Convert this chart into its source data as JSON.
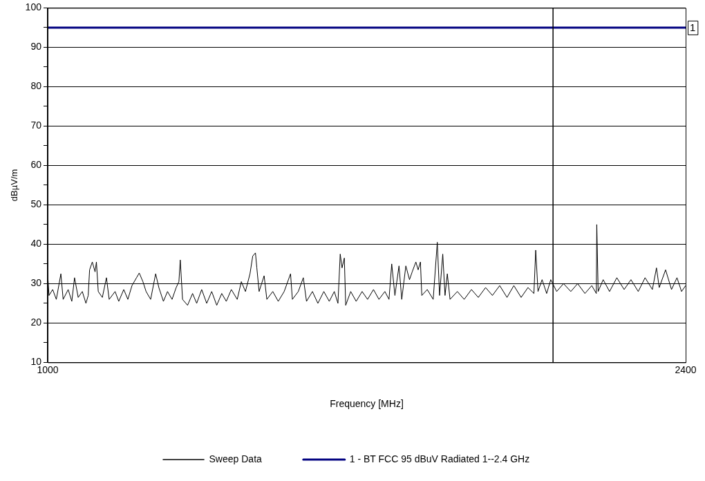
{
  "chart_data": {
    "type": "line",
    "xlabel": "Frequency [MHz]",
    "ylabel": "dBµV/m",
    "xlim": [
      1000,
      2400
    ],
    "xticks": [
      1000,
      2400
    ],
    "ylim": [
      10,
      100
    ],
    "yticks": [
      10,
      {
        "value": 15,
        "label": null
      },
      20,
      {
        "value": 25,
        "label": null
      },
      30,
      {
        "value": 35,
        "label": null
      },
      40,
      {
        "value": 45,
        "label": null
      },
      50,
      {
        "value": 55,
        "label": null
      },
      60,
      {
        "value": 65,
        "label": null
      },
      70,
      {
        "value": 75,
        "label": null
      },
      80,
      {
        "value": 85,
        "label": null
      },
      90,
      {
        "value": 95,
        "label": null
      },
      100
    ],
    "grid": "y",
    "legend": "bottom",
    "marker": "none",
    "line_style": "solid",
    "ref_lines": [
      {
        "axis": "x",
        "value": 2109,
        "color": "#000000"
      }
    ],
    "annotations": [
      {
        "text": "1",
        "x": 2400,
        "y": 95
      }
    ],
    "series": [
      {
        "name": "Sweep Data",
        "color": "#000000",
        "x": [
          1000,
          1003,
          1011,
          1019,
          1029,
          1034,
          1045,
          1053,
          1059,
          1067,
          1076,
          1084,
          1089,
          1092,
          1098,
          1104,
          1107,
          1111,
          1120,
          1129,
          1135,
          1148,
          1156,
          1167,
          1176,
          1185,
          1195,
          1201,
          1209,
          1216,
          1226,
          1237,
          1244,
          1254,
          1263,
          1273,
          1282,
          1288,
          1291,
          1296,
          1307,
          1318,
          1327,
          1338,
          1349,
          1360,
          1371,
          1382,
          1392,
          1403,
          1416,
          1425,
          1434,
          1444,
          1450,
          1456,
          1459,
          1464,
          1475,
          1481,
          1494,
          1506,
          1519,
          1533,
          1537,
          1550,
          1561,
          1568,
          1581,
          1593,
          1606,
          1618,
          1629,
          1637,
          1642,
          1646,
          1651,
          1654,
          1665,
          1677,
          1690,
          1702,
          1715,
          1727,
          1740,
          1749,
          1755,
          1762,
          1771,
          1777,
          1786,
          1794,
          1800,
          1808,
          1813,
          1818,
          1821,
          1833,
          1846,
          1855,
          1860,
          1867,
          1872,
          1877,
          1883,
          1899,
          1914,
          1930,
          1945,
          1961,
          1976,
          1992,
          2008,
          2023,
          2039,
          2054,
          2067,
          2071,
          2076,
          2085,
          2095,
          2104,
          2117,
          2132,
          2148,
          2163,
          2179,
          2194,
          2204,
          2205,
          2208,
          2219,
          2233,
          2249,
          2265,
          2280,
          2296,
          2311,
          2327,
          2336,
          2342,
          2356,
          2369,
          2381,
          2391,
          2400
        ],
        "values": [
          32.5,
          27,
          28.5,
          26,
          32.5,
          26,
          28.5,
          25.5,
          31.5,
          26.5,
          28,
          25,
          27,
          33.5,
          35.5,
          33,
          35.5,
          28,
          26.5,
          31.5,
          26,
          28,
          25.5,
          28.5,
          26,
          29.5,
          31.5,
          32.7,
          30.5,
          28,
          26,
          32.5,
          29,
          25.5,
          28,
          26,
          29,
          30.5,
          36,
          26,
          24.5,
          27.5,
          25,
          28.5,
          25,
          28,
          24.5,
          27.5,
          25.5,
          28.5,
          26,
          30.5,
          28,
          32.5,
          37,
          37.8,
          34,
          28,
          32,
          26,
          28,
          25.5,
          28,
          32.5,
          26,
          28,
          31.5,
          25.5,
          28,
          25,
          28,
          25.5,
          28,
          25,
          37.5,
          34,
          36.5,
          24.5,
          28,
          25.5,
          28,
          26,
          28.5,
          26,
          28,
          26,
          35,
          27,
          34.5,
          26,
          34.5,
          31,
          33,
          35.5,
          33.5,
          35.5,
          27,
          28.5,
          26,
          40.5,
          27,
          37.5,
          27,
          32.5,
          26,
          28,
          26,
          28.5,
          26.5,
          29,
          27,
          29.5,
          26.5,
          29.5,
          26.5,
          29,
          27.5,
          38.5,
          28,
          31,
          27.5,
          31,
          28,
          30,
          28,
          30,
          27.5,
          29.5,
          27.5,
          45,
          28,
          31,
          28,
          31.5,
          28.5,
          31,
          28,
          31.5,
          28.5,
          34,
          29,
          33.5,
          28.5,
          31.5,
          28,
          29.5
        ]
      },
      {
        "name": "1 - BT FCC 95 dBuV Radiated 1--2.4 GHz",
        "color": "#000080",
        "x": [
          1000,
          2400
        ],
        "values": [
          95,
          95
        ]
      }
    ]
  }
}
